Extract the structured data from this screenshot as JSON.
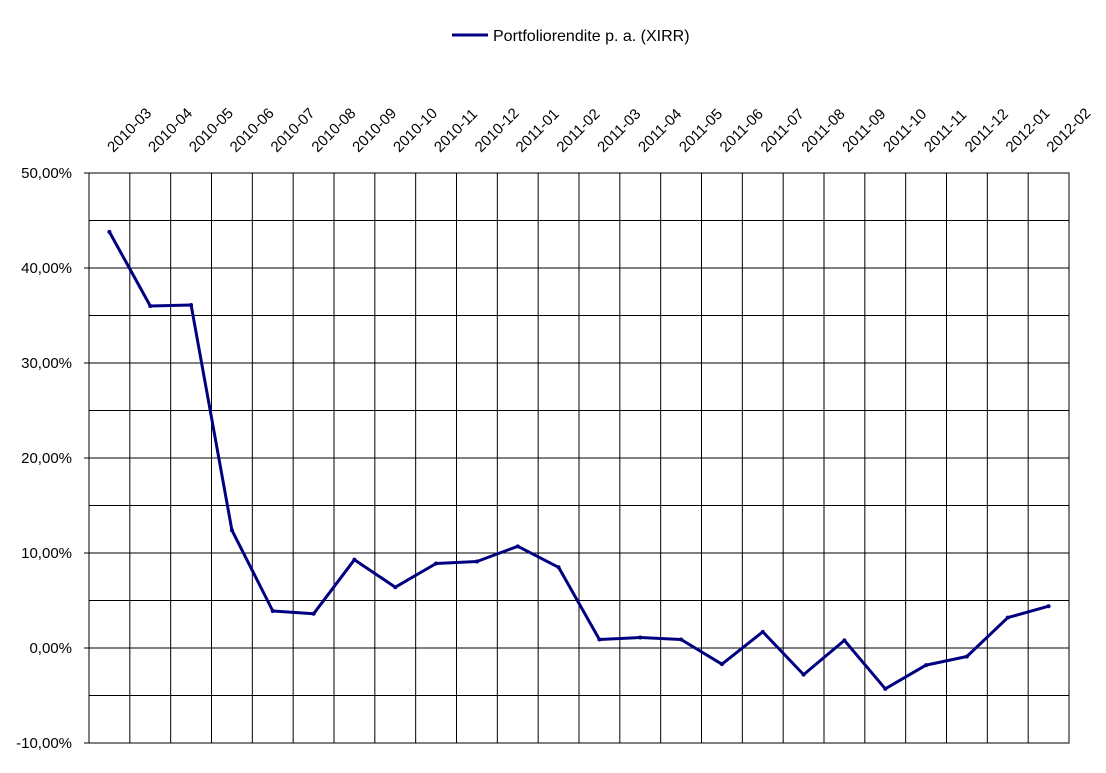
{
  "chart_data": {
    "type": "line",
    "legend_position": "top-center",
    "grid": true,
    "xlabel": "",
    "ylabel": "",
    "categories": [
      "2010-03",
      "2010-04",
      "2010-05",
      "2010-06",
      "2010-07",
      "2010-08",
      "2010-09",
      "2010-10",
      "2010-11",
      "2010-12",
      "2011-01",
      "2011-02",
      "2011-03",
      "2011-04",
      "2011-05",
      "2011-06",
      "2011-07",
      "2011-08",
      "2011-09",
      "2011-10",
      "2011-11",
      "2011-12",
      "2012-01",
      "2012-02"
    ],
    "yticks": [
      "50,00%",
      "40,00%",
      "30,00%",
      "20,00%",
      "10,00%",
      "0,00%",
      "-10,00%"
    ],
    "ylim": [
      -10,
      50
    ],
    "series": [
      {
        "name": "Portfoliorendite p. a. (XIRR)",
        "color": "#000080",
        "values": [
          43.8,
          36.0,
          36.1,
          12.4,
          3.9,
          3.6,
          9.3,
          6.4,
          8.9,
          9.1,
          10.7,
          8.5,
          0.9,
          1.1,
          0.9,
          -1.7,
          1.7,
          -2.8,
          0.8,
          -4.3,
          -1.8,
          -0.9,
          3.2,
          4.4
        ]
      }
    ]
  }
}
